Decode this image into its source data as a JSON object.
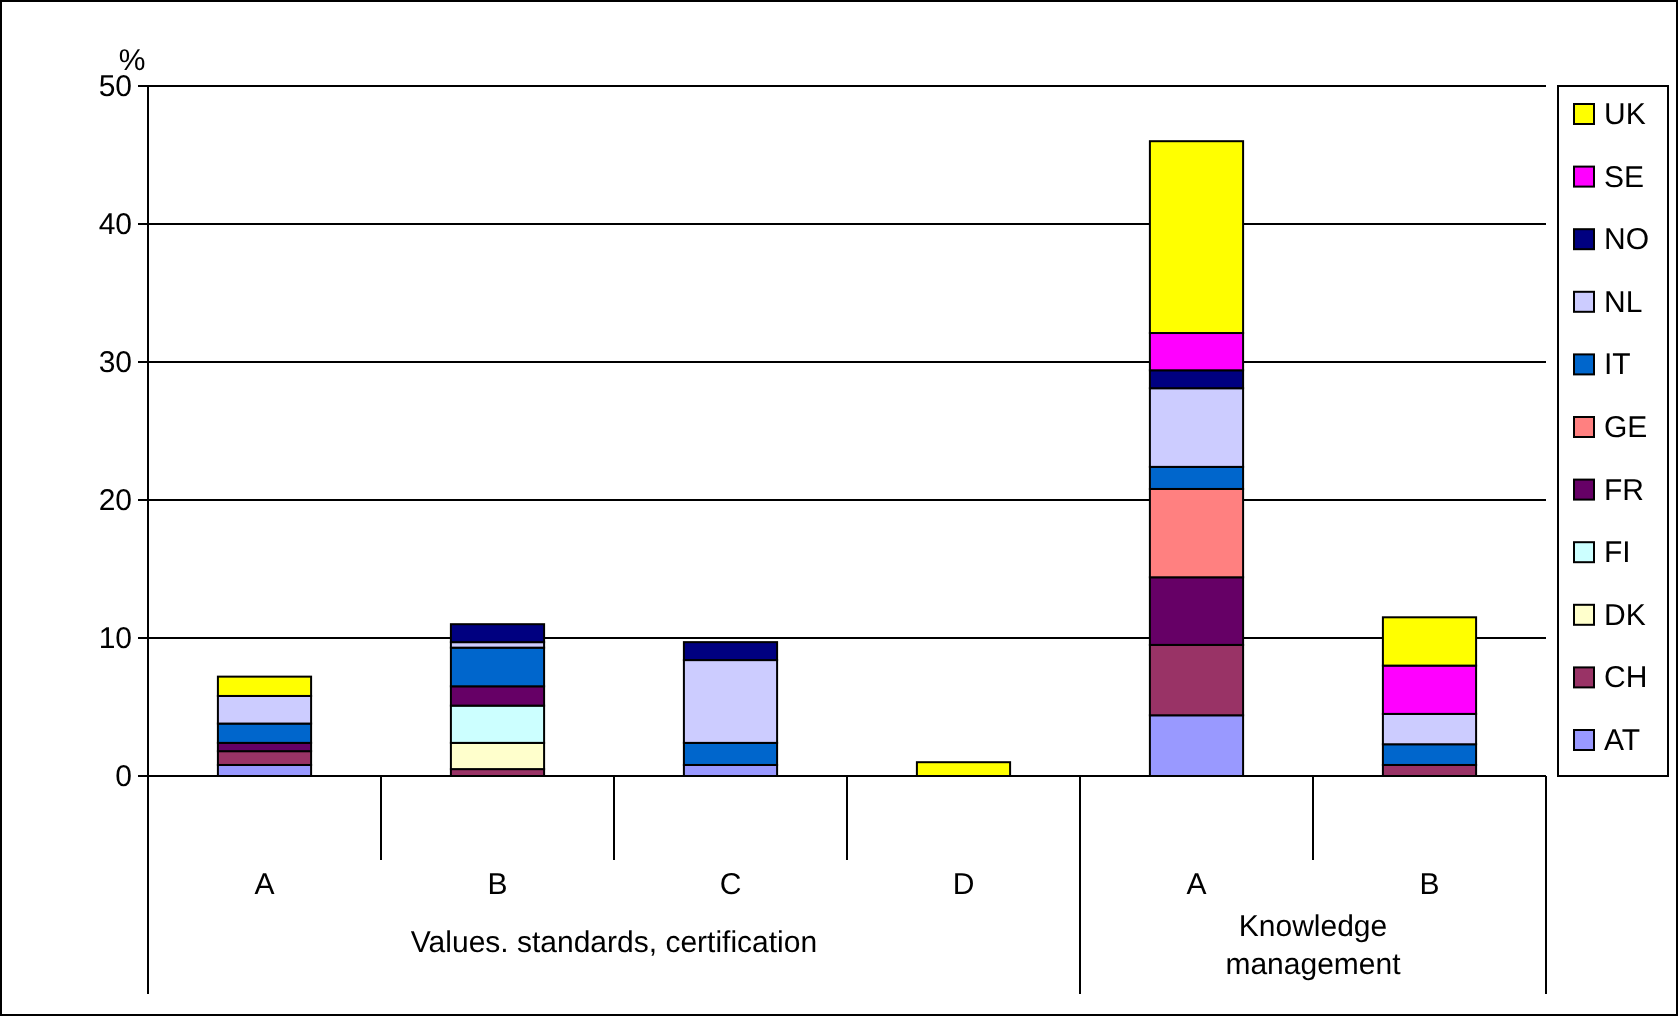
{
  "chart_data": {
    "type": "bar",
    "stacked": true,
    "ylabel": "%",
    "categories": [
      "A",
      "B",
      "C",
      "D",
      "A",
      "B"
    ],
    "annotations": [
      "Values. standards, certification",
      "Knowledge management"
    ],
    "ylim": [
      0,
      50
    ],
    "yticks": [
      0,
      10,
      20,
      30,
      40,
      50
    ],
    "grid": "y",
    "legend": "right",
    "series": [
      {
        "name": "AT",
        "color": "#9999ff",
        "values": [
          0.8,
          null,
          0.8,
          null,
          4.4,
          null
        ]
      },
      {
        "name": "CH",
        "color": "#993366",
        "values": [
          1.0,
          0.5,
          null,
          null,
          5.1,
          0.8
        ]
      },
      {
        "name": "DK",
        "color": "#ffffcc",
        "values": [
          null,
          1.9,
          null,
          null,
          null,
          null
        ]
      },
      {
        "name": "FI",
        "color": "#ccffff",
        "values": [
          null,
          2.7,
          null,
          null,
          null,
          null
        ]
      },
      {
        "name": "FR",
        "color": "#660066",
        "values": [
          0.6,
          1.4,
          null,
          null,
          4.9,
          null
        ]
      },
      {
        "name": "GE",
        "color": "#ff8080",
        "values": [
          null,
          null,
          null,
          null,
          6.4,
          null
        ]
      },
      {
        "name": "IT",
        "color": "#0066cc",
        "values": [
          1.4,
          2.8,
          1.6,
          null,
          1.6,
          1.5
        ]
      },
      {
        "name": "NL",
        "color": "#ccccff",
        "values": [
          2.0,
          0.4,
          6.0,
          null,
          5.7,
          2.2
        ]
      },
      {
        "name": "NO",
        "color": "#000080",
        "values": [
          null,
          1.3,
          1.3,
          null,
          1.3,
          null
        ]
      },
      {
        "name": "SE",
        "color": "#ff00ff",
        "values": [
          null,
          null,
          null,
          null,
          2.7,
          3.5
        ]
      },
      {
        "name": "UK",
        "color": "#ffff00",
        "values": [
          1.4,
          null,
          null,
          1.0,
          13.9,
          3.5
        ]
      }
    ]
  }
}
